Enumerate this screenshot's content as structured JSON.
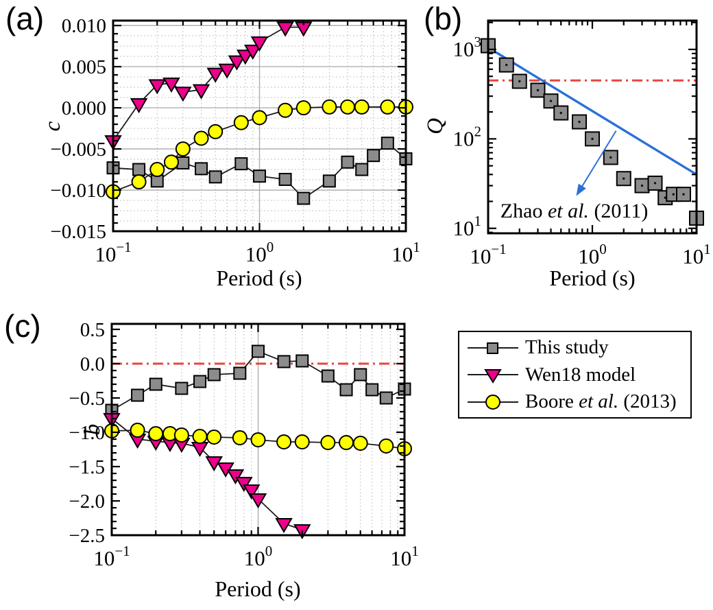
{
  "page": {
    "background": "#ffffff"
  },
  "colors": {
    "this_study": "#8c8c8c",
    "wen18": "#ec008c",
    "boore": "#ffff00",
    "marker_edge": "#000000",
    "series_line": "#1a1a1a",
    "zhao": "#2b70d5",
    "ref_red": "#e8453f",
    "grid_solid": "#a9a9a9",
    "grid_dot": "#c4c4c4",
    "frame": "#000000",
    "text": "#000000"
  },
  "legend": {
    "items": [
      {
        "name": "this-study",
        "marker": "square",
        "parts": [
          "This study",
          "",
          ""
        ]
      },
      {
        "name": "wen18",
        "marker": "triangle",
        "parts": [
          "Wen18 model",
          "",
          ""
        ]
      },
      {
        "name": "boore",
        "marker": "circle",
        "parts": [
          "Boore ",
          "et al.",
          " (2013)"
        ]
      }
    ]
  },
  "chart_data": [
    {
      "id": "a",
      "tag": "(a)",
      "type": "line",
      "xlabel": "Period (s)",
      "ylabel": "c",
      "xscale": "log",
      "xlim": [
        0.1,
        10
      ],
      "ylim": [
        -0.015,
        0.0106
      ],
      "xticks": {
        "exponents": [
          -1,
          0,
          1
        ]
      },
      "yticks": {
        "values": [
          0.01,
          0.005,
          0.0,
          -0.005,
          -0.01,
          -0.015
        ],
        "labels": [
          "0.010",
          "0.005",
          "0.000",
          "−0.005",
          "−0.010",
          "−0.015"
        ],
        "minor_step": 0.001
      },
      "grid": {
        "h_solid": [
          0.01,
          0.005,
          0,
          -0.005,
          -0.01
        ],
        "h_dot_step": 0.00125,
        "v_minor_dot": true,
        "v_solid": [
          1
        ]
      },
      "series": [
        {
          "name": "This study",
          "marker": "square",
          "fill": "#8c8c8c",
          "x": [
            0.1,
            0.15,
            0.2,
            0.3,
            0.4,
            0.5,
            0.75,
            1,
            1.5,
            2,
            3,
            4,
            5,
            6,
            7.5,
            10
          ],
          "y": [
            -0.0073,
            -0.0075,
            -0.0089,
            -0.0067,
            -0.0074,
            -0.0084,
            -0.0068,
            -0.0083,
            -0.0087,
            -0.011,
            -0.0089,
            -0.0066,
            -0.0075,
            -0.0058,
            -0.0043,
            -0.0062
          ]
        },
        {
          "name": "Wen18 model",
          "marker": "triangle",
          "fill": "#ec008c",
          "x": [
            0.1,
            0.15,
            0.2,
            0.25,
            0.3,
            0.4,
            0.5,
            0.6,
            0.7,
            0.8,
            0.9,
            1,
            1.5,
            2
          ],
          "y": [
            -0.004,
            0.0005,
            0.0028,
            0.003,
            0.0019,
            0.0022,
            0.0042,
            0.0047,
            0.0057,
            0.0064,
            0.007,
            0.008,
            0.0098,
            0.0098
          ]
        },
        {
          "name": "Boore et al. (2013)",
          "marker": "circle",
          "fill": "#ffff00",
          "x": [
            0.1,
            0.15,
            0.2,
            0.25,
            0.3,
            0.4,
            0.5,
            0.75,
            1,
            1.5,
            2,
            3,
            4,
            5,
            7.5,
            10
          ],
          "y": [
            -0.0102,
            -0.009,
            -0.0075,
            -0.0066,
            -0.005,
            -0.0037,
            -0.0029,
            -0.0018,
            -0.0012,
            -0.0003,
            0.0,
            0.0001,
            0.0001,
            0.0001,
            0.0001,
            0.0001
          ]
        }
      ]
    },
    {
      "id": "b",
      "tag": "(b)",
      "type": "scatter",
      "xlabel": "Period (s)",
      "ylabel": "Q",
      "xscale": "log",
      "yscale": "log",
      "xlim": [
        0.1,
        10
      ],
      "ylim": [
        8.8,
        2100
      ],
      "xticks": {
        "exponents": [
          -1,
          0,
          1
        ]
      },
      "yticks": {
        "exponents": [
          1,
          2,
          3
        ]
      },
      "ref_lines": [
        {
          "style": "dashdot",
          "y": 450,
          "color": "#e8453f"
        }
      ],
      "lines": [
        {
          "name": "Zhao et al. (2011)",
          "x": [
            0.1,
            10
          ],
          "y": [
            1050,
            40
          ],
          "color": "#2b70d5"
        }
      ],
      "annotation": {
        "parts": [
          "Zhao ",
          "et al.",
          " (2011)"
        ],
        "text_pos": [
          0.67,
          13.2
        ],
        "arrow_from": [
          1.69,
          123
        ],
        "arrow_to": [
          0.7,
          23
        ],
        "color": "#2b70d5"
      },
      "series": [
        {
          "name": "This study",
          "marker": "square",
          "dot": true,
          "connect": false,
          "fill": "#8c8c8c",
          "x": [
            0.1,
            0.15,
            0.2,
            0.3,
            0.4,
            0.5,
            0.75,
            1,
            1.5,
            2,
            3,
            4,
            5,
            6,
            7.5,
            10
          ],
          "y": [
            1100,
            670,
            440,
            350,
            265,
            195,
            155,
            100,
            62,
            36,
            30,
            32,
            22,
            24,
            24,
            13
          ]
        }
      ]
    },
    {
      "id": "c",
      "tag": "(c)",
      "type": "line",
      "xlabel": "Period (s)",
      "ylabel": "b",
      "xscale": "log",
      "xlim": [
        0.1,
        10
      ],
      "ylim": [
        -2.5,
        0.58
      ],
      "xticks": {
        "exponents": [
          -1,
          0,
          1
        ]
      },
      "yticks": {
        "values": [
          0.5,
          0.0,
          -0.5,
          -1.0,
          -1.5,
          -2.0,
          -2.5
        ],
        "labels": [
          "0.5",
          "0.0",
          "−0.5",
          "−1.0",
          "−1.5",
          "−2.0",
          "−2.5"
        ],
        "minor_step": 0.1
      },
      "grid": {
        "h_solid": [],
        "v_minor_dot": true,
        "v_solid": [
          1
        ]
      },
      "ref_lines": [
        {
          "style": "dashdot",
          "y": 0,
          "color": "#e8453f"
        }
      ],
      "series": [
        {
          "name": "This study",
          "marker": "square",
          "fill": "#8c8c8c",
          "x": [
            0.1,
            0.15,
            0.2,
            0.3,
            0.4,
            0.5,
            0.75,
            1,
            1.5,
            2,
            3,
            4,
            5,
            6,
            7.5,
            10
          ],
          "y": [
            -0.68,
            -0.46,
            -0.3,
            -0.36,
            -0.26,
            -0.16,
            -0.14,
            0.18,
            0.03,
            0.04,
            -0.18,
            -0.38,
            -0.16,
            -0.38,
            -0.5,
            -0.37
          ]
        },
        {
          "name": "Wen18 model",
          "marker": "triangle",
          "fill": "#ec008c",
          "x": [
            0.1,
            0.15,
            0.2,
            0.25,
            0.3,
            0.4,
            0.5,
            0.6,
            0.7,
            0.8,
            0.9,
            1,
            1.5,
            2
          ],
          "y": [
            -0.8,
            -1.1,
            -1.13,
            -1.15,
            -1.16,
            -1.22,
            -1.43,
            -1.52,
            -1.62,
            -1.73,
            -1.84,
            -1.97,
            -2.33,
            -2.42
          ]
        },
        {
          "name": "Boore et al. (2013)",
          "marker": "circle",
          "fill": "#ffff00",
          "x": [
            0.1,
            0.15,
            0.2,
            0.25,
            0.3,
            0.4,
            0.5,
            0.75,
            1,
            1.5,
            2,
            3,
            4,
            5,
            7.5,
            10
          ],
          "y": [
            -0.98,
            -0.97,
            -1.02,
            -1.02,
            -1.04,
            -1.06,
            -1.07,
            -1.08,
            -1.11,
            -1.14,
            -1.14,
            -1.15,
            -1.15,
            -1.16,
            -1.2,
            -1.24
          ]
        }
      ]
    }
  ]
}
